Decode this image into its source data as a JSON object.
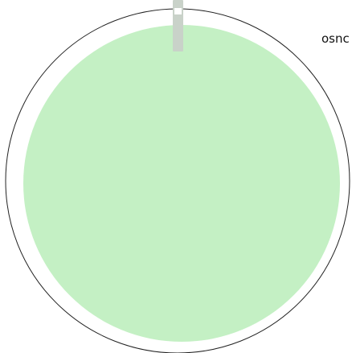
{
  "dial": {
    "level_fraction": 0.98,
    "colors": {
      "ring": "#222222",
      "fill": "#c4f0c4",
      "handle": "#c9d2c9",
      "background": "#ffffff"
    }
  },
  "corner_label": "osnc"
}
